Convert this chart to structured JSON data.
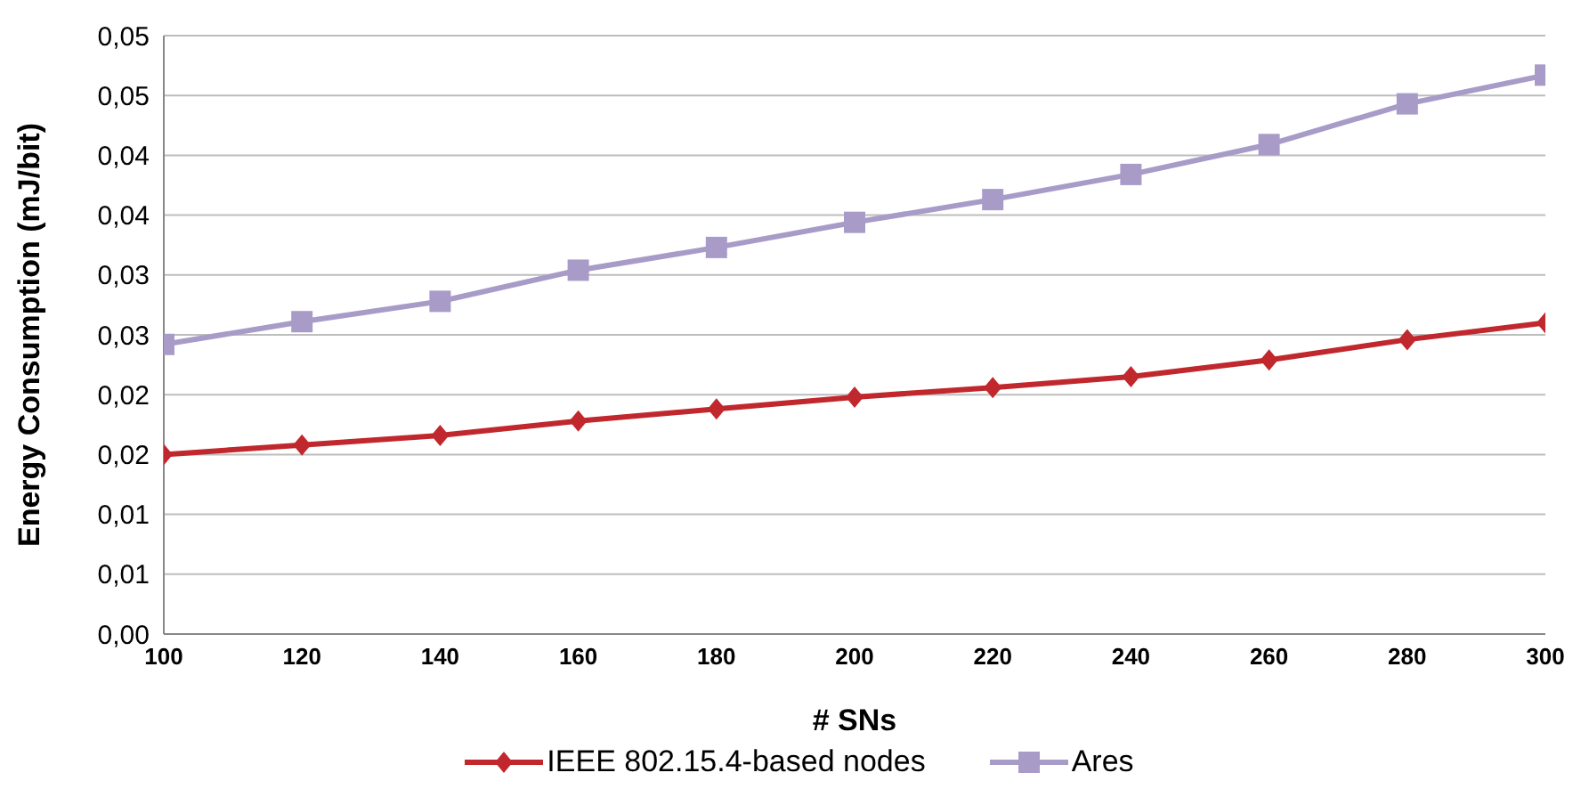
{
  "chart_data": {
    "type": "line",
    "xlabel": "# SNs",
    "ylabel": "Energy Consumption (mJ/bit)",
    "x": [
      100,
      120,
      140,
      160,
      180,
      200,
      220,
      240,
      260,
      280,
      300
    ],
    "xlim": [
      100,
      300
    ],
    "xticks": [
      100,
      120,
      140,
      160,
      180,
      200,
      220,
      240,
      260,
      280,
      300
    ],
    "ylim": [
      0,
      0.05
    ],
    "yticks": [
      {
        "value": 0,
        "label": "0,00"
      },
      {
        "value": 0.005,
        "label": "0,01"
      },
      {
        "value": 0.01,
        "label": "0,01"
      },
      {
        "value": 0.015,
        "label": "0,02"
      },
      {
        "value": 0.02,
        "label": "0,02"
      },
      {
        "value": 0.025,
        "label": "0,03"
      },
      {
        "value": 0.03,
        "label": "0,03"
      },
      {
        "value": 0.035,
        "label": "0,04"
      },
      {
        "value": 0.04,
        "label": "0,04"
      },
      {
        "value": 0.045,
        "label": "0,05"
      },
      {
        "value": 0.05,
        "label": "0,05"
      }
    ],
    "grid": "y",
    "legend": "bottom",
    "line_style": "solid",
    "series": [
      {
        "name": "IEEE 802.15.4-based nodes",
        "color": "#c0282d",
        "marker": "diamond",
        "values": [
          0.015,
          0.0158,
          0.0166,
          0.0178,
          0.0188,
          0.0198,
          0.0206,
          0.0215,
          0.0229,
          0.0246,
          0.026
        ]
      },
      {
        "name": "Ares",
        "color": "#a99bc8",
        "marker": "square",
        "values": [
          0.0242,
          0.0261,
          0.0278,
          0.0304,
          0.0323,
          0.0344,
          0.0363,
          0.0384,
          0.0409,
          0.0443,
          0.0467
        ]
      }
    ]
  }
}
